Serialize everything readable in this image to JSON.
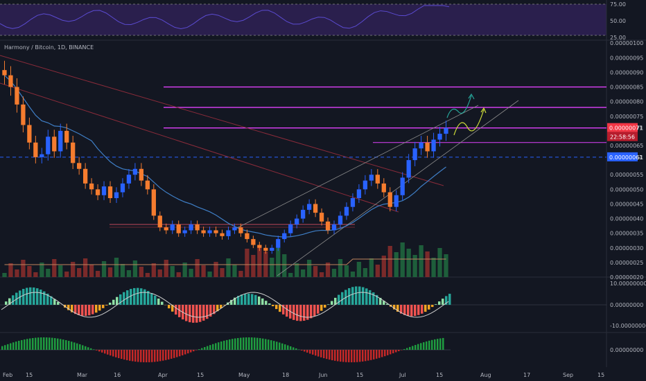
{
  "symbol_line": "Harmony / Bitcoin, 1D, BINANCE",
  "colors": {
    "background": "#131722",
    "up": "#2962ff",
    "down": "#f57c2f",
    "magenta": "#e040fb",
    "trend_red": "#8a2b3a",
    "trend_gray": "#8c8c8c",
    "ma_blue": "#3f7fc7",
    "rsi_line": "#5b4bd1",
    "rsi_band": "#2a1f4d",
    "green": "#26a69a",
    "red": "#ef5350",
    "current_red": "#f23645",
    "current_blue": "#2962ff"
  },
  "price_pane": {
    "y_range": [
      2e-07,
      1.01e-06
    ],
    "price_ticks": [
      "0.00000100",
      "0.00000095",
      "0.00000090",
      "0.00000085",
      "0.00000080",
      "0.00000075",
      "0.00000071",
      "0.00000065",
      "0.00000061",
      "0.00000055",
      "0.00000050",
      "0.00000045",
      "0.00000040",
      "0.00000035",
      "0.00000030",
      "0.00000025",
      "0.00000020"
    ],
    "current_price": "0.00000071",
    "countdown": "22:58:56",
    "marked_price": "0.00000061",
    "horizontal_levels": [
      8.5e-07,
      7.8e-07,
      7.1e-07,
      6.6e-07
    ],
    "dashed_level": 6.1e-07,
    "resistance_box_level": 3.8e-07
  },
  "rsi_pane": {
    "ticks": [
      "75.00",
      "50.00",
      "25.00"
    ],
    "upper": 70,
    "lower": 30
  },
  "macd_pane": {
    "ticks": [
      "10.00000000",
      "0.00000000",
      "-10.00000000"
    ]
  },
  "osc_pane": {
    "ticks": [
      "0.00000000"
    ]
  },
  "x_axis": {
    "ticks": [
      "Feb",
      "15",
      "Mar",
      "16",
      "Apr",
      "15",
      "May",
      "18",
      "Jun",
      "15",
      "Jul",
      "15",
      "Aug",
      "17",
      "Sep",
      "15"
    ]
  },
  "chart_data": {
    "type": "candlestick",
    "title": "Harmony / Bitcoin, 1D, BINANCE",
    "unit": "BTC",
    "close_series": [
      8.9e-07,
      8.5e-07,
      7.9e-07,
      7.2e-07,
      6.6e-07,
      6.1e-07,
      6.2e-07,
      6.8e-07,
      6.3e-07,
      7e-07,
      6.6e-07,
      5.9e-07,
      5.7e-07,
      5.2e-07,
      5e-07,
      4.8e-07,
      5.1e-07,
      4.7e-07,
      4.9e-07,
      5.2e-07,
      5.5e-07,
      5.7e-07,
      5.3e-07,
      5e-07,
      4.1e-07,
      3.7e-07,
      3.6e-07,
      3.8e-07,
      3.5e-07,
      3.6e-07,
      3.8e-07,
      3.6e-07,
      3.5e-07,
      3.6e-07,
      3.5e-07,
      3.4e-07,
      3.6e-07,
      3.7e-07,
      3.5e-07,
      3.3e-07,
      3.1e-07,
      3e-07,
      2.9e-07,
      3e-07,
      3.3e-07,
      3.5e-07,
      3.8e-07,
      4e-07,
      4.3e-07,
      4.5e-07,
      4.2e-07,
      3.9e-07,
      3.6e-07,
      3.8e-07,
      4.1e-07,
      4.4e-07,
      4.7e-07,
      5e-07,
      5.3e-07,
      5.5e-07,
      5.2e-07,
      4.9e-07,
      4.4e-07,
      4.8e-07,
      5.4e-07,
      6e-07,
      6.4e-07,
      6.6e-07,
      6.3e-07,
      6.7e-07,
      6.9e-07,
      7.1e-07
    ]
  }
}
